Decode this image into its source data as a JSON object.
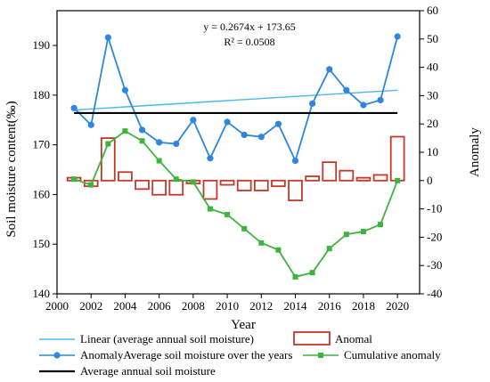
{
  "chart_data": {
    "type": "bar",
    "xlabel": "Year",
    "ylabel_left": "Soil moisture content(‰)",
    "ylabel_right": "Anomaly",
    "xlim": [
      2000,
      2021.3
    ],
    "ylim_left": [
      140,
      197
    ],
    "ylim_right": [
      -40,
      60
    ],
    "x_ticks": [
      2000,
      2002,
      2004,
      2006,
      2008,
      2010,
      2012,
      2014,
      2016,
      2018,
      2020
    ],
    "y_left_ticks": [
      140,
      150,
      160,
      170,
      180,
      190
    ],
    "y_right_ticks": [
      -40,
      -30,
      -20,
      -10,
      0,
      10,
      20,
      30,
      40,
      50,
      60
    ],
    "annotation": {
      "equation": "y = 0.2674x + 173.65",
      "r2": "R² = 0.0508"
    },
    "series": [
      {
        "name": "Linear (average annual soil moisture)",
        "kind": "line",
        "axis": "left",
        "color": "#4db8e8",
        "x": [
          2001,
          2020
        ],
        "values": [
          177.0,
          181.0
        ]
      },
      {
        "name": "Anomal",
        "kind": "bar",
        "axis": "right",
        "color": "#c0392b",
        "x": [
          2001,
          2002,
          2003,
          2004,
          2005,
          2006,
          2007,
          2008,
          2009,
          2010,
          2011,
          2012,
          2013,
          2014,
          2015,
          2016,
          2017,
          2018,
          2019,
          2020
        ],
        "values": [
          1,
          -2,
          15,
          3,
          -3,
          -5,
          -5,
          -1,
          -6.5,
          -1.5,
          -3.5,
          -3.5,
          -2,
          -7,
          1.5,
          6.5,
          3.5,
          1,
          2,
          15.5
        ]
      },
      {
        "name": "AnomalyAverage soil moisture over the years",
        "kind": "line-marker",
        "axis": "left",
        "color": "#2e86de",
        "x": [
          2001,
          2002,
          2003,
          2004,
          2005,
          2006,
          2007,
          2008,
          2009,
          2010,
          2011,
          2012,
          2013,
          2014,
          2015,
          2016,
          2017,
          2018,
          2019,
          2020
        ],
        "values": [
          177.4,
          174.0,
          191.6,
          181.0,
          173.0,
          170.5,
          170.2,
          175.0,
          167.3,
          174.6,
          172.0,
          171.6,
          174.2,
          166.8,
          178.3,
          185.2,
          181.0,
          178.0,
          179.0,
          191.8
        ]
      },
      {
        "name": "Cumulative anomaly",
        "kind": "line-marker",
        "axis": "right",
        "color": "#3cb53c",
        "x": [
          2001,
          2002,
          2003,
          2004,
          2005,
          2006,
          2007,
          2008,
          2009,
          2010,
          2011,
          2012,
          2013,
          2014,
          2015,
          2016,
          2017,
          2018,
          2019,
          2020
        ],
        "values": [
          0.5,
          -1.5,
          13,
          17.5,
          14,
          7,
          0.5,
          -0.5,
          -10,
          -12,
          -17,
          -22,
          -24.5,
          -34,
          -32.5,
          -24,
          -19,
          -18,
          -15.5,
          0
        ]
      },
      {
        "name": "Average annual soil moisture",
        "kind": "hline",
        "axis": "left",
        "color": "#000000",
        "x": [
          2001,
          2020
        ],
        "values": [
          176.4,
          176.4
        ]
      }
    ],
    "legend_position": "bottom"
  }
}
